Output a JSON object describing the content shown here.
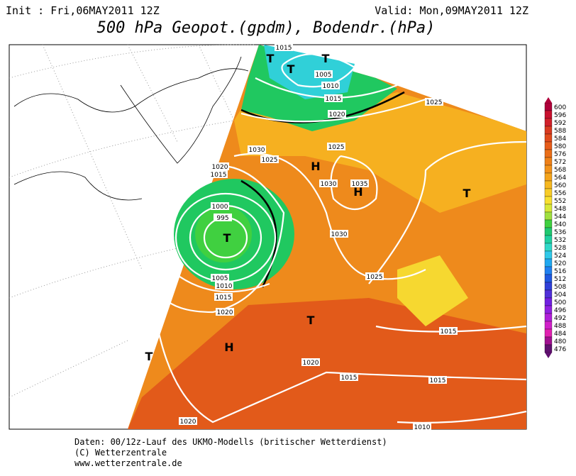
{
  "header": {
    "init": "Init : Fri,06MAY2011 12Z",
    "valid": "Valid: Mon,09MAY2011 12Z",
    "title": "500 hPa Geopot.(gpdm), Bodendr.(hPa)"
  },
  "isobar_labels": [
    "1015",
    "1005",
    "1010",
    "1015",
    "1020",
    "1025",
    "1030",
    "1025",
    "1020",
    "1015",
    "1000",
    "995",
    "1005",
    "1010",
    "1015",
    "1020",
    "1030",
    "1035",
    "1030",
    "1025",
    "1015",
    "1020",
    "1015",
    "1015",
    "1020",
    "1010",
    "1025"
  ],
  "pressure_centers": [
    "T",
    "T",
    "T",
    "H",
    "H",
    "T",
    "T",
    "T",
    "H",
    "T"
  ],
  "colorbar": {
    "labels": [
      "600",
      "596",
      "592",
      "588",
      "584",
      "580",
      "576",
      "572",
      "568",
      "564",
      "560",
      "556",
      "552",
      "548",
      "544",
      "540",
      "536",
      "532",
      "528",
      "524",
      "520",
      "516",
      "512",
      "508",
      "504",
      "500",
      "496",
      "492",
      "488",
      "484",
      "480",
      "476"
    ],
    "colors": [
      "#b0003a",
      "#c8102e",
      "#d0202a",
      "#d83a20",
      "#e04a1c",
      "#e65c1a",
      "#ea6e18",
      "#ee8018",
      "#f2921a",
      "#f4a41c",
      "#f6b820",
      "#f8cc28",
      "#f8e030",
      "#d8e838",
      "#a0e040",
      "#40d040",
      "#20c870",
      "#20d0a0",
      "#30d8c8",
      "#30c8e8",
      "#20a8f0",
      "#2080f0",
      "#2058e0",
      "#3040d8",
      "#5030d8",
      "#7020e0",
      "#9020e0",
      "#b020d8",
      "#d020c8",
      "#e020b0",
      "#a01090",
      "#601070"
    ]
  },
  "footer": [
    "Daten: 00/12z-Lauf des UKMO-Modells (britischer Wetterdienst)",
    "(C) Wetterzentrale",
    "www.wetterzentrale.de"
  ]
}
